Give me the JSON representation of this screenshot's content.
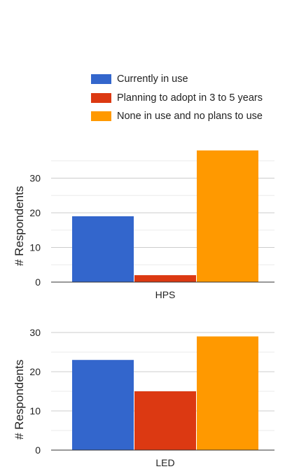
{
  "legend": {
    "items": [
      {
        "label": "Currently in use",
        "color": "#3366CC"
      },
      {
        "label": "Planning to adopt in 3 to 5 years",
        "color": "#DC3912"
      },
      {
        "label": "None in use and no plans to use",
        "color": "#FF9900"
      }
    ],
    "position": "top"
  },
  "chart_data": [
    {
      "type": "bar",
      "categories": [
        "HPS"
      ],
      "series": [
        {
          "name": "Currently in use",
          "values": [
            19
          ]
        },
        {
          "name": "Planning to adopt in 3 to 5 years",
          "values": [
            2
          ]
        },
        {
          "name": "None in use and no plans to use",
          "values": [
            38
          ]
        }
      ],
      "ylabel": "# Respondents",
      "ylim": [
        0,
        40
      ],
      "yticks": [
        0,
        10,
        20,
        30
      ],
      "grid": true
    },
    {
      "type": "bar",
      "categories": [
        "LED"
      ],
      "series": [
        {
          "name": "Currently in use",
          "values": [
            23
          ]
        },
        {
          "name": "Planning to adopt in 3 to 5 years",
          "values": [
            15
          ]
        },
        {
          "name": "None in use and no plans to use",
          "values": [
            29
          ]
        }
      ],
      "ylabel": "# Respondents",
      "ylim": [
        0,
        30
      ],
      "yticks": [
        0,
        10,
        20,
        30
      ],
      "grid": true
    }
  ]
}
